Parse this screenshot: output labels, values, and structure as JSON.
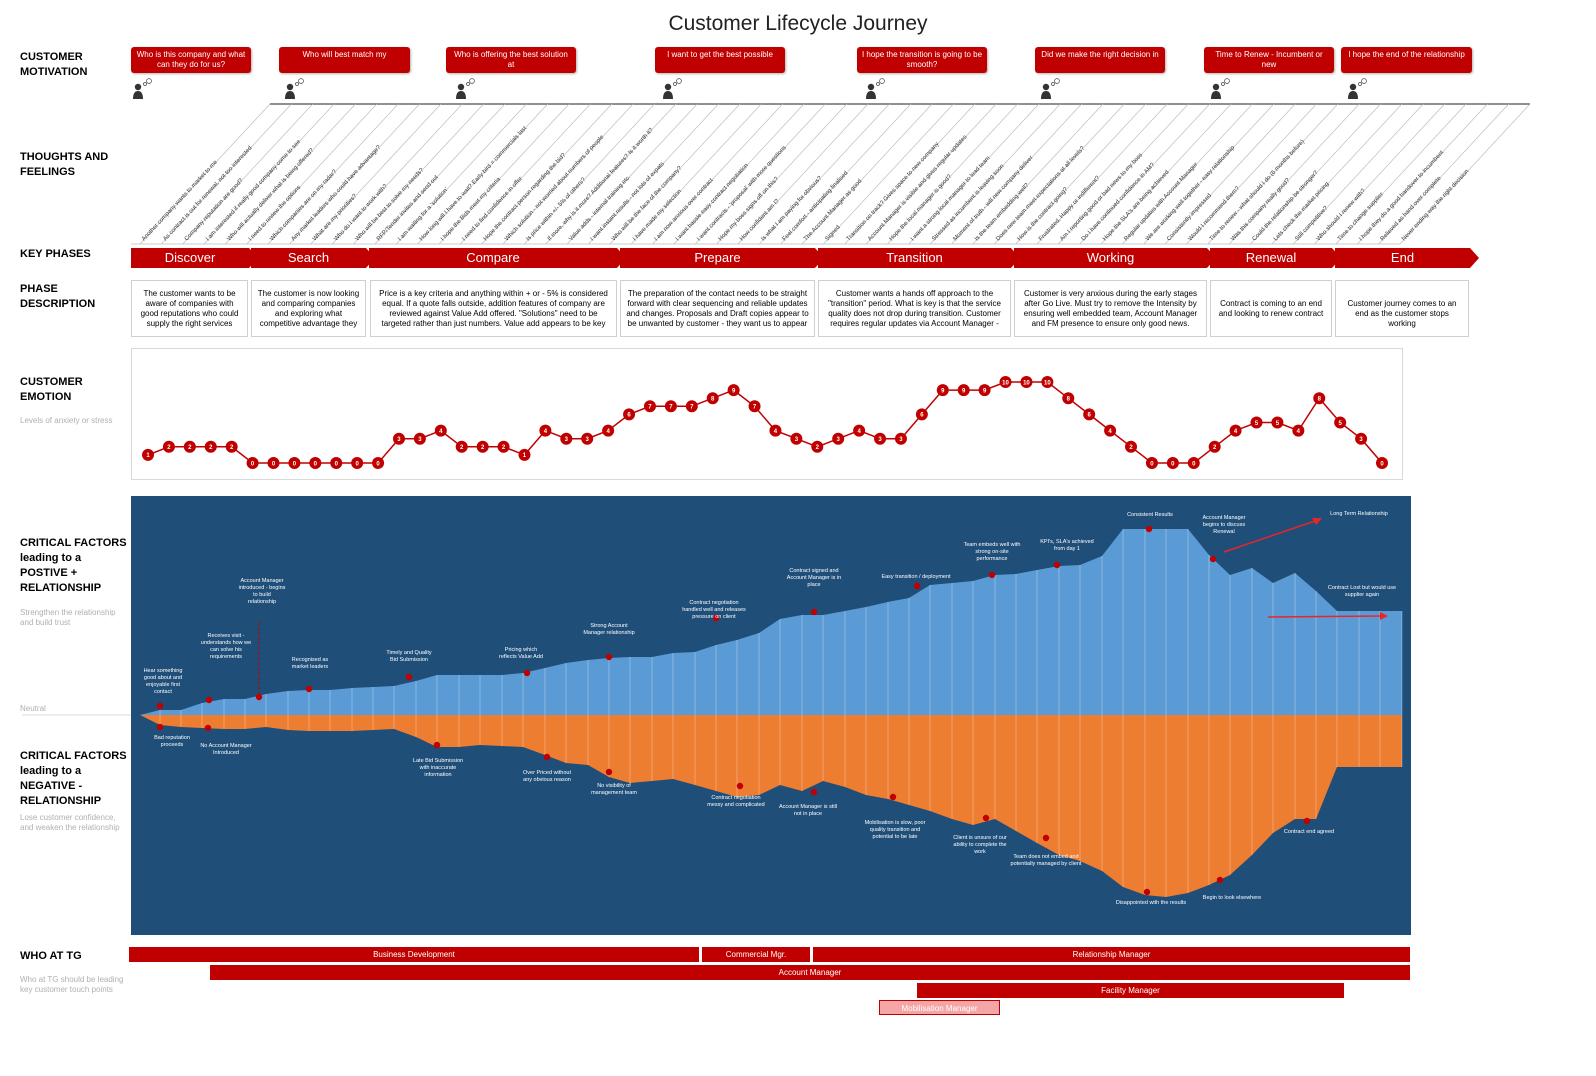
{
  "title": "Customer Lifecycle Journey",
  "row_labels": {
    "motivation": "CUSTOMER\nMOTIVATION",
    "thoughts": "THOUGHTS AND\nFEELINGS",
    "phases": "KEY PHASES",
    "description": "PHASE\nDESCRIPTION",
    "emotion": "CUSTOMER\nEMOTION",
    "emotion_sub": "Levels of anxiety or stress",
    "positive": "CRITICAL FACTORS\nleading to a\nPOSTIVE +\nRELATIONSHIP",
    "positive_sub": "Strengthen the relationship and build trust",
    "negative": "CRITICAL FACTORS\nleading to a\nNEGATIVE -\nRELATIONSHIP",
    "negative_sub": "Lose customer confidence, and weaken the relationship",
    "who": "WHO AT TG",
    "who_sub": "Who at TG should be leading key customer touch points",
    "neutral": "Neutral"
  },
  "motivations": [
    "Who is this company and what can they do for us?",
    "Who will best match my",
    "Who is offering the best solution at",
    "I want to get the best possible",
    "I hope the transition is going to be smooth?",
    "Did we make the right decision in",
    "Time to Renew - Incumbent or new",
    "I hope the end of the relationship"
  ],
  "thoughts": [
    "Another company wants to market to me",
    "As contract is out for renewal, not too interested",
    "Company reputation are good?",
    "I am interested if really good company come to see",
    "Who will actually deliver what is being offered?",
    "I need to review the options",
    "Which companies are on my radar?",
    "Any market leaders who could have advantage?",
    "What are my priorities?",
    "Who do I want to work with?",
    "Who will be best to solve my needs?",
    "RFP/Tender invites and send out",
    "I am waiting for a 'solution'",
    "How long will I have to wait? Early bird = commercials last",
    "I hope the Bids meet my criteria",
    "I need to find confidence in offer",
    "Hope the contract person regarding the bid?",
    "Which solution - not worried about numbers of people",
    "Is price within +/- 5% of others?",
    "If more, why is it more? Additional features? Is it worth it?",
    "Value adds - internal training etc.",
    "I want instant results - not lots of expats",
    "Who will be the face of the company?",
    "I have made my selection",
    "I am now anxious over contract",
    "I want hassle easy contract negotiation",
    "I want contracts - 'proposal' with more questions",
    "Hope my boss signs off on this?",
    "How confident am I?",
    "Is what I am paying for obvious?",
    "Feel comfort - anticipating finalised",
    "The Account Manager as good",
    "Signed",
    "Transition on track? Gives space to new company",
    "Account Manager is visible and gives regular updates",
    "Hope the local manager is good?",
    "I want a strong local manager to lead team",
    "Stressed as incumbent is leaving soon",
    "Moment of truth - will new company deliver",
    "Is the team embedding well?",
    "Does new team meet expectations at all levels?",
    "How is the contract going?",
    "Frustrated, Happy or indifferent?",
    "Am I reporting good or bad news to my boss",
    "Do I have continued confidence in AM?",
    "Hope the SLA's are being achieved",
    "Regular updates with Account Manager",
    "We are working well together - easy relationship",
    "Consistently impressed",
    "Would I recommend them?",
    "Time to renew - what should I do (6 months before)",
    "Was this company really good?",
    "Could the relationship be stronger?",
    "Lets check the market pricing",
    "Still competitive?",
    "Who should I renew with?",
    "Time to change supplier",
    "I hope they do a good handover to incumbent",
    "Relieved as hand over complete",
    "Never ending way the right decision"
  ],
  "phases": [
    "Discover",
    "Search",
    "Compare",
    "Prepare",
    "Transition",
    "Working",
    "Renewal",
    "End"
  ],
  "descriptions": [
    "The customer wants to be aware of companies with good reputations who could supply the right services",
    "The customer is now looking and comparing companies and exploring what competitive advantage they",
    "Price is a key criteria and anything within + or - 5% is considered equal. If a quote falls outside, addition features of company are reviewed against Value Add offered. \"Solutions\" need to be targeted rather than just numbers. Value add appears to be key",
    "The preparation of the contact needs to be straight forward with clear sequencing and reliable updates and changes. Proposals and Draft copies appear to be unwanted by customer - they want us to appear",
    "Customer wants a hands off approach to the \"transition\" period. What is key is that the service quality does not drop during transition. Customer requires regular updates via Account Manager -",
    "Customer is very anxious during the early stages after Go Live. Must try to remove the Intensity by ensuring well embedded team, Account Manager and FM presence to ensure only good news.",
    "Contract is coming to an end and looking to renew contract",
    "Customer journey comes to an end as the customer stops working"
  ],
  "chart_data": {
    "type": "line",
    "series": [
      {
        "values": [
          1,
          2,
          2,
          2,
          2,
          0,
          0,
          0,
          0,
          0,
          0,
          0,
          3,
          3,
          4,
          2,
          2,
          2,
          1,
          4,
          3,
          3,
          4,
          6,
          7,
          7,
          7,
          8,
          9,
          7,
          4,
          3,
          2,
          3,
          4,
          3,
          3,
          6,
          9,
          9,
          9,
          10,
          10,
          10,
          8,
          6,
          4,
          2,
          0,
          0,
          0,
          2,
          4,
          5,
          5,
          4,
          8,
          5,
          3,
          0
        ]
      }
    ]
  },
  "positive_labels": [
    "Hear something good about and enjoyable first contact",
    "Receives visit - understands how we can solve his requirements",
    "Account Manager introduced - begins to build relationship",
    "Recognised as market leaders",
    "Timely and Quality Bid Submission",
    "Pricing which reflects Value Add",
    "Strong Account Manager relationship",
    "Contract negotiation handled well and releases pressure on client",
    "Contract signed and Account Manager is in place",
    "Easy transition / deployment",
    "Team embeds well with strong on-site performance",
    "KPI's, SLA's achieved from day 1",
    "Consistent Results",
    "Account Manager begins to discuss Renewal",
    "Long Term Relationship",
    "Contract Lost but would use supplier again"
  ],
  "negative_labels": [
    "Bad reputation proceeds",
    "No Account Manager Introduced",
    "Late Bid Submission with inaccurate information",
    "Over Priced without any obvious reason",
    "No visibility of management team",
    "Contract negotiation messy and complicated",
    "Account Manager is still not in place",
    "Mobilisation is slow, poor quality transition and potential to be late",
    "Client is unsure of our ability to complete the work",
    "Team does not embed and potentially managed by client",
    "Disappointed with the results",
    "Begin to look elsewhere",
    "Contract end agreed"
  ],
  "who": [
    "Business Development",
    "Commercial Mgr.",
    "Relationship Manager",
    "Account Manager",
    "Facility Manager",
    "Mobilisation Manager"
  ],
  "colors": {
    "red": "#c00000",
    "blue_bg": "#1f4e79",
    "positive_fill": "#5b9bd5",
    "negative_fill": "#ed7d31",
    "light_bar": "#f4a6a6"
  }
}
